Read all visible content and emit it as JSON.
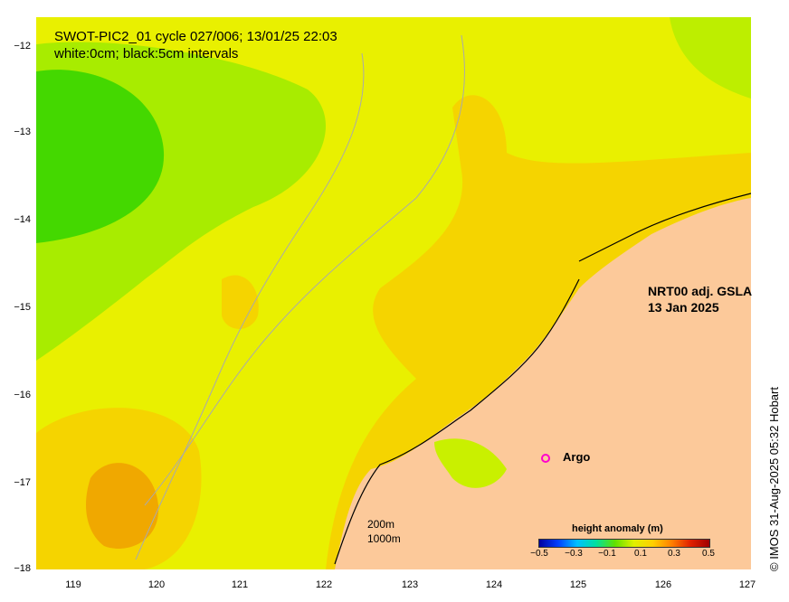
{
  "title": {
    "line1": "SWOT-PIC2_01 cycle 027/006; 13/01/25 22:03",
    "line2": "white:0cm; black:5cm intervals"
  },
  "product": {
    "line1": "NRT00 adj. GSLA",
    "line2": "13 Jan 2025"
  },
  "argo_label": "Argo",
  "argo_color": "#ff00cc",
  "depth_contours": {
    "shallow": "200m",
    "deep": "1000m"
  },
  "colorbar": {
    "title": "height anomaly (m)",
    "ticks": [
      "−0.5",
      "−0.3",
      "−0.1",
      "0.1",
      "0.3",
      "0.5"
    ]
  },
  "y_axis": {
    "ticks": [
      "−12",
      "−13",
      "−14",
      "−15",
      "−16",
      "−17",
      "−18"
    ]
  },
  "x_axis": {
    "ticks": [
      "119",
      "120",
      "121",
      "122",
      "123",
      "124",
      "125",
      "126",
      "127"
    ]
  },
  "credit": "© IMOS 31-Aug-2025 05:32 Hobart",
  "colors": {
    "land": "#fcc99a",
    "ocean_yellow": "#e9f000",
    "ocean_amber": "#f5d400",
    "ocean_orange": "#f0a800",
    "ocean_lime": "#a8ec00",
    "ocean_green": "#44d800"
  }
}
